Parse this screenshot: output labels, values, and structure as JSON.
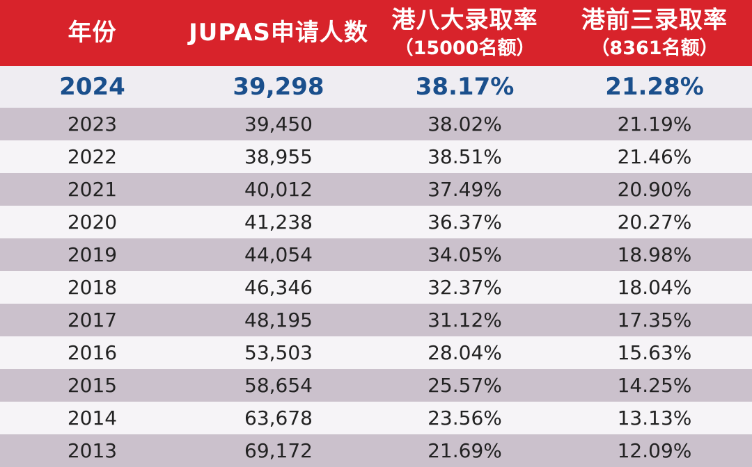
{
  "header": {
    "year": "年份",
    "applicants": "JUPAS申请人数",
    "hk8_title": "港八大录取率",
    "hk8_quota": "（15000名额）",
    "top3_title": "港前三录取率",
    "top3_quota": "（8361名额）"
  },
  "chart_data": {
    "type": "table",
    "columns": [
      "年份",
      "JUPAS申请人数",
      "港八大录取率（15000名额）",
      "港前三录取率（8361名额）"
    ],
    "rows": [
      [
        "2024",
        "39,298",
        "38.17%",
        "21.28%"
      ],
      [
        "2023",
        "39,450",
        "38.02%",
        "21.19%"
      ],
      [
        "2022",
        "38,955",
        "38.51%",
        "21.46%"
      ],
      [
        "2021",
        "40,012",
        "37.49%",
        "20.90%"
      ],
      [
        "2020",
        "41,238",
        "36.37%",
        "20.27%"
      ],
      [
        "2019",
        "44,054",
        "34.05%",
        "18.98%"
      ],
      [
        "2018",
        "46,346",
        "32.37%",
        "18.04%"
      ],
      [
        "2017",
        "48,195",
        "31.12%",
        "17.35%"
      ],
      [
        "2016",
        "53,503",
        "28.04%",
        "15.63%"
      ],
      [
        "2015",
        "58,654",
        "25.57%",
        "14.25%"
      ],
      [
        "2014",
        "63,678",
        "23.56%",
        "13.13%"
      ],
      [
        "2013",
        "69,172",
        "21.69%",
        "12.09%"
      ]
    ]
  },
  "colors": {
    "header_bg": "#d8232b",
    "featured_text": "#1a4f8c",
    "shaded_row": "#cbc1cc",
    "light_row": "#f6f4f7"
  }
}
